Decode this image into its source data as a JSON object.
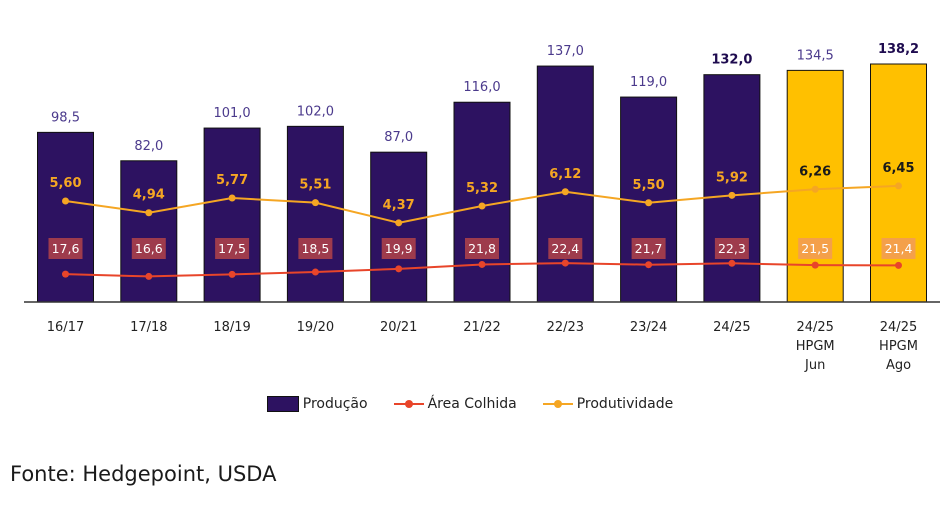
{
  "source": "Fonte: Hedgepoint, USDA",
  "colors": {
    "production": "#2d1261",
    "production_highlight": "#ffc000",
    "area": "#e8452a",
    "area_label_bg": "#9e3b4c",
    "area_label_bg_highlight": "#f4a04a",
    "productivity": "#f5a623",
    "axis": "#333333"
  },
  "chart_data": {
    "type": "bar",
    "categories": [
      "16/17",
      "17/18",
      "18/19",
      "19/20",
      "20/21",
      "21/22",
      "22/23",
      "23/24",
      "24/25",
      "24/25 HPGM Jun",
      "24/25 HPGM Ago"
    ],
    "highlight_categories": [
      "24/25 HPGM Jun",
      "24/25 HPGM Ago"
    ],
    "series": [
      {
        "name": "Produção",
        "type": "bar",
        "values": [
          98.5,
          82.0,
          101.0,
          102.0,
          87.0,
          116.0,
          137.0,
          119.0,
          132.0,
          134.5,
          138.2
        ],
        "labels": [
          "98,5",
          "82,0",
          "101,0",
          "102,0",
          "87,0",
          "116,0",
          "137,0",
          "119,0",
          "132,0",
          "134,5",
          "138,2"
        ]
      },
      {
        "name": "Área Colhida",
        "type": "line",
        "values": [
          17.6,
          16.6,
          17.5,
          18.5,
          19.9,
          21.8,
          22.4,
          21.7,
          22.3,
          21.5,
          21.4
        ],
        "labels": [
          "17,6",
          "16,6",
          "17,5",
          "18,5",
          "19,9",
          "21,8",
          "22,4",
          "21,7",
          "22,3",
          "21,5",
          "21,4"
        ]
      },
      {
        "name": "Produtividade",
        "type": "line",
        "values": [
          5.6,
          4.94,
          5.77,
          5.51,
          4.37,
          5.32,
          6.12,
          5.5,
          5.92,
          6.26,
          6.45
        ],
        "labels": [
          "5,60",
          "4,94",
          "5,77",
          "5,51",
          "4,37",
          "5,32",
          "6,12",
          "5,50",
          "5,92",
          "6,26",
          "6,45"
        ]
      }
    ],
    "legend": {
      "position": "bottom",
      "items": [
        "Produção",
        "Área Colhida",
        "Produtividade"
      ]
    },
    "grid": false
  }
}
